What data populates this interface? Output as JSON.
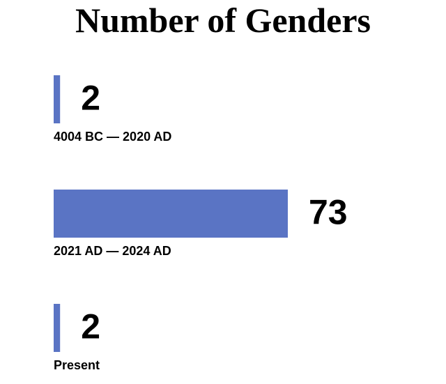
{
  "chart_data": {
    "type": "bar",
    "orientation": "horizontal",
    "title": "Number of Genders",
    "categories": [
      "4004 BC — 2020 AD",
      "2021 AD — 2024 AD",
      "Present"
    ],
    "values": [
      2,
      73,
      2
    ],
    "color": "#5a74c4"
  }
}
